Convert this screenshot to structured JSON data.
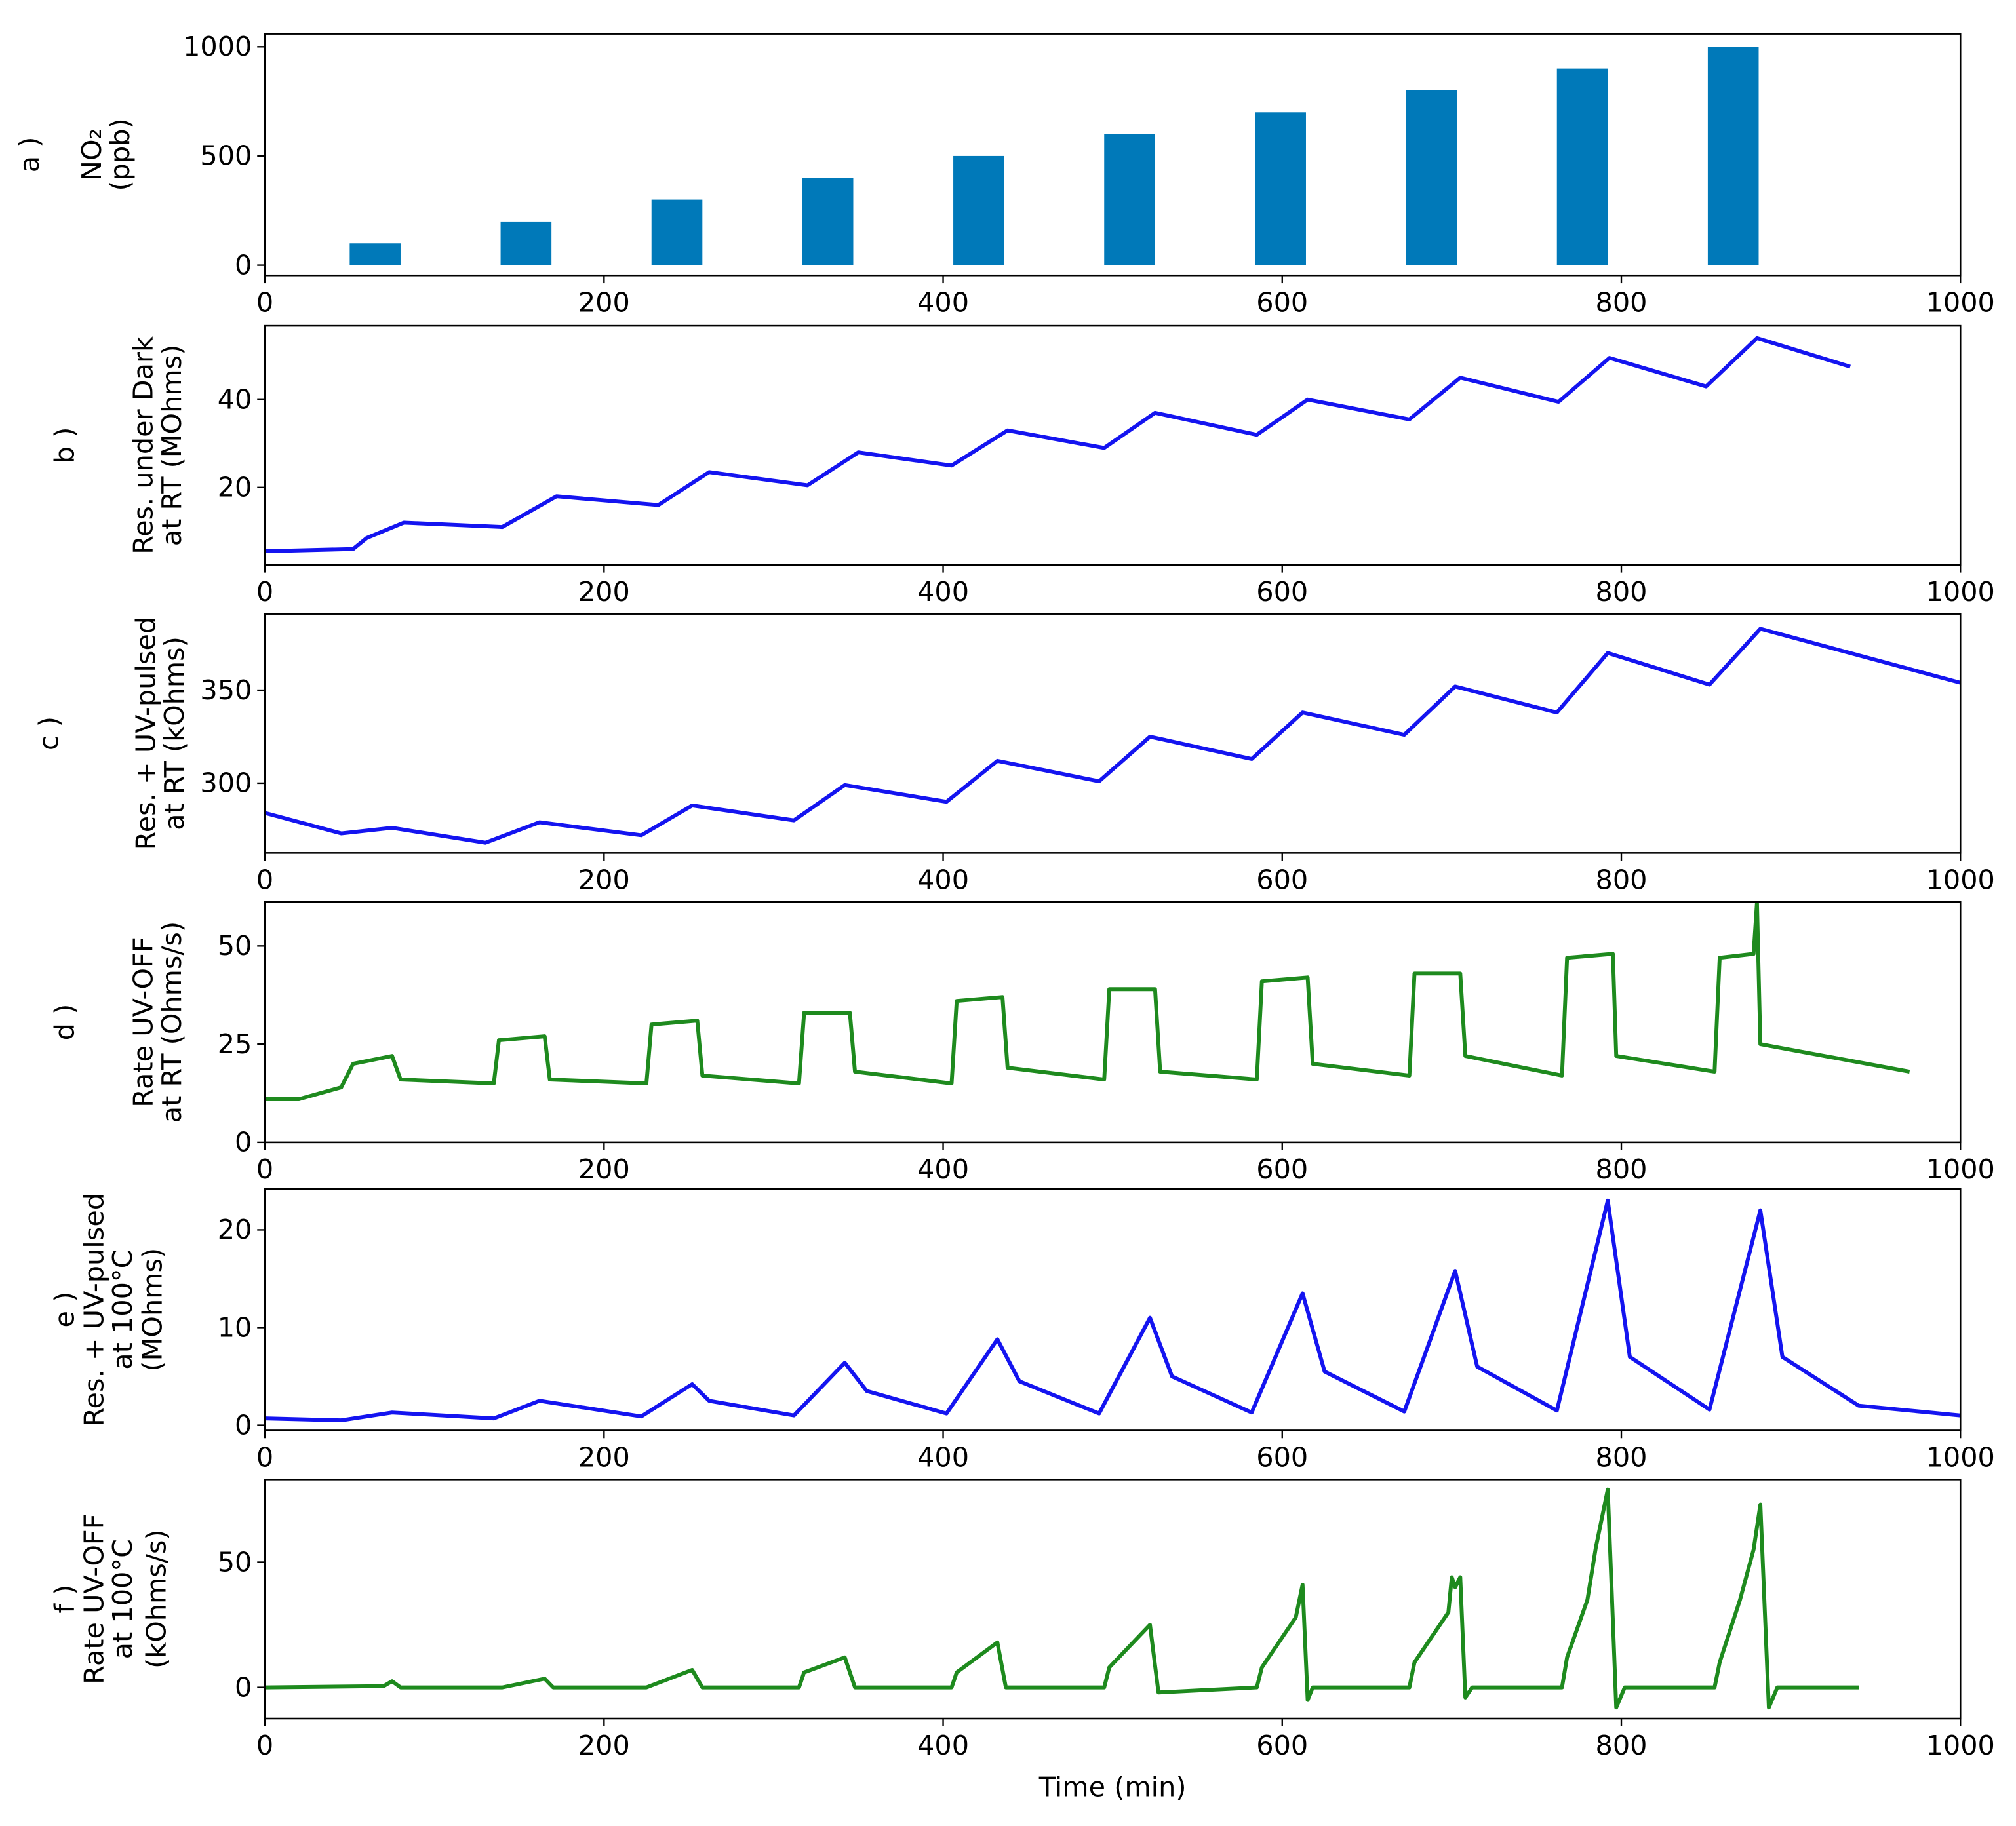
{
  "chart_data": [
    {
      "type": "bar",
      "panel_label": "a )",
      "ylabel": [
        "NO₂",
        "(ppb)"
      ],
      "color": "#0079b9",
      "xlim": [
        0,
        1000
      ],
      "ylim": [
        -47,
        1059
      ],
      "xticks": [
        0,
        200,
        400,
        600,
        800,
        1000
      ],
      "yticks": [
        0,
        500,
        1000
      ],
      "x": [
        65,
        154,
        243,
        332,
        421,
        510,
        599,
        688,
        777,
        866
      ],
      "values": [
        100,
        200,
        300,
        400,
        500,
        600,
        700,
        800,
        900,
        1000
      ]
    },
    {
      "type": "line",
      "panel_label": "b )",
      "ylabel": [
        "Res. under Dark",
        "at RT (MOhms)"
      ],
      "color": "#1414f0",
      "xlim": [
        0,
        1000
      ],
      "ylim": [
        2.4,
        56.8
      ],
      "xticks": [
        0,
        200,
        400,
        600,
        800,
        1000
      ],
      "yticks": [
        20,
        40
      ],
      "x": [
        0,
        52,
        60,
        82,
        140,
        172,
        232,
        262,
        320,
        350,
        405,
        438,
        495,
        525,
        585,
        615,
        675,
        705,
        763,
        793,
        850,
        880,
        935
      ],
      "values": [
        5.5,
        6,
        8.5,
        12,
        11,
        18,
        16,
        23.5,
        20.5,
        28,
        25,
        33,
        29,
        37,
        32,
        40,
        35.5,
        45,
        39.5,
        49.5,
        43,
        54,
        47.5
      ]
    },
    {
      "type": "line",
      "panel_label": "c )",
      "ylabel": [
        "Res. + UV-pulsed",
        "at RT (kOhms)"
      ],
      "color": "#1414f0",
      "xlim": [
        0,
        1000
      ],
      "ylim": [
        262.5,
        391
      ],
      "xticks": [
        0,
        200,
        400,
        600,
        800,
        1000
      ],
      "yticks": [
        300,
        350
      ],
      "x": [
        0,
        45,
        75,
        130,
        162,
        222,
        252,
        312,
        342,
        402,
        432,
        492,
        522,
        582,
        612,
        672,
        702,
        762,
        792,
        852,
        882,
        1000
      ],
      "values": [
        284,
        273,
        276,
        268,
        279,
        272,
        288,
        280,
        299,
        290,
        312,
        301,
        325,
        313,
        338,
        326,
        352,
        338,
        370,
        353,
        383,
        354
      ]
    },
    {
      "type": "line",
      "panel_label": "d )",
      "ylabel": [
        "Rate UV-OFF",
        "at RT (Ohms/s)"
      ],
      "color": "#1e8a1e",
      "xlim": [
        0,
        1000
      ],
      "ylim": [
        0,
        61.2
      ],
      "xticks": [
        0,
        200,
        400,
        600,
        800,
        1000
      ],
      "yticks": [
        0,
        25,
        50
      ],
      "x": [
        0,
        20,
        45,
        52,
        75,
        80,
        135,
        138,
        165,
        168,
        225,
        228,
        255,
        258,
        315,
        318,
        345,
        348,
        405,
        408,
        435,
        438,
        495,
        498,
        525,
        528,
        585,
        588,
        615,
        618,
        675,
        678,
        705,
        708,
        765,
        768,
        795,
        797,
        855,
        858,
        878,
        880,
        882,
        970
      ],
      "values": [
        11,
        11,
        14,
        20,
        22,
        16,
        15,
        26,
        27,
        16,
        15,
        30,
        31,
        17,
        15,
        33,
        33,
        18,
        15,
        36,
        37,
        19,
        16,
        39,
        39,
        18,
        16,
        41,
        42,
        20,
        17,
        43,
        43,
        22,
        17,
        47,
        48,
        22,
        18,
        47,
        48,
        61,
        25,
        18
      ]
    },
    {
      "type": "line",
      "panel_label": "e )",
      "ylabel": [
        "Res. + UV-pulsed",
        "at 100°C",
        "(MOhms)"
      ],
      "color": "#1414f0",
      "xlim": [
        0,
        1000
      ],
      "ylim": [
        -0.53,
        24.2
      ],
      "xticks": [
        0,
        200,
        400,
        600,
        800,
        1000
      ],
      "yticks": [
        0,
        10,
        20
      ],
      "x": [
        0,
        45,
        75,
        135,
        162,
        222,
        252,
        262,
        312,
        342,
        355,
        402,
        432,
        445,
        492,
        522,
        535,
        582,
        612,
        625,
        672,
        702,
        715,
        762,
        792,
        805,
        852,
        882,
        895,
        940,
        1000
      ],
      "values": [
        0.7,
        0.5,
        1.3,
        0.7,
        2.5,
        0.9,
        4.2,
        2.5,
        1,
        6.4,
        3.5,
        1.2,
        8.8,
        4.5,
        1.2,
        11,
        5,
        1.3,
        13.5,
        5.5,
        1.4,
        15.8,
        6,
        1.5,
        23,
        7,
        1.6,
        22,
        7,
        2,
        1
      ]
    },
    {
      "type": "line",
      "panel_label": "f )",
      "ylabel": [
        "Rate UV-OFF",
        "at 100°C",
        "(kOhms/s)"
      ],
      "color": "#1e8a1e",
      "xlabel": "Time (min)",
      "xlim": [
        0,
        1000
      ],
      "ylim": [
        -12.4,
        83
      ],
      "xticks": [
        0,
        200,
        400,
        600,
        800,
        1000
      ],
      "yticks": [
        0,
        50
      ],
      "x": [
        0,
        70,
        75,
        80,
        140,
        165,
        170,
        225,
        252,
        258,
        315,
        318,
        342,
        348,
        405,
        408,
        432,
        437,
        495,
        498,
        522,
        527,
        585,
        588,
        608,
        612,
        615,
        618,
        675,
        678,
        698,
        700,
        702,
        705,
        708,
        712,
        765,
        768,
        780,
        785,
        792,
        797,
        802,
        855,
        858,
        870,
        878,
        882,
        887,
        892,
        940
      ],
      "values": [
        0,
        0.5,
        2.5,
        0,
        0,
        3.5,
        0,
        0,
        7,
        0,
        0,
        6,
        12,
        0,
        0,
        6,
        18,
        0,
        0,
        8,
        25,
        -2,
        0,
        8,
        28,
        41,
        -5,
        0,
        0,
        10,
        30,
        44,
        40,
        44,
        -4,
        0,
        0,
        12,
        35,
        56,
        79,
        -8,
        0,
        0,
        10,
        35,
        55,
        73,
        -8,
        0,
        0
      ]
    }
  ]
}
